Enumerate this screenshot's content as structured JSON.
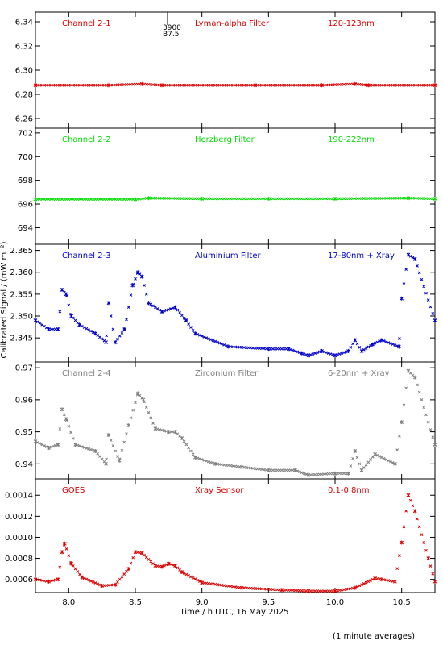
{
  "figure": {
    "ylabel": "Calibrated Signal / (mW m⁻²)",
    "xlabel": "Time / h UTC, 16 May 2025",
    "footnote": "(1 minute averages)",
    "marker": {
      "top": "3900",
      "bottom": "B7.5"
    }
  },
  "chart_data": [
    {
      "type": "scatter",
      "channel": "Channel 2-1",
      "filter": "Lyman-alpha Filter",
      "band": "120-123nm",
      "color": "#dd0000",
      "ylim": [
        6.252,
        6.348
      ],
      "yticks": [
        6.26,
        6.28,
        6.3,
        6.32,
        6.34
      ],
      "ytick_labels": [
        "6.26",
        "6.28",
        "6.30",
        "6.32",
        "6.34"
      ],
      "x": [
        7.75,
        8.3,
        8.55,
        8.7,
        9.4,
        9.9,
        10.15,
        10.25,
        10.75
      ],
      "y": [
        6.2875,
        6.2875,
        6.2885,
        6.2875,
        6.2875,
        6.2875,
        6.2885,
        6.2875,
        6.2875
      ]
    },
    {
      "type": "scatter",
      "channel": "Channel 2-2",
      "filter": "Herzberg Filter",
      "band": "190-222nm",
      "color": "#00dd00",
      "ylim": [
        692.6,
        702.4
      ],
      "yticks": [
        694,
        696,
        698,
        700,
        702
      ],
      "ytick_labels": [
        "694",
        "696",
        "698",
        "700",
        "702"
      ],
      "x": [
        7.75,
        8.5,
        8.6,
        9.0,
        9.5,
        10.0,
        10.55,
        10.75
      ],
      "y": [
        696.4,
        696.4,
        696.5,
        696.45,
        696.45,
        696.45,
        696.5,
        696.45
      ]
    },
    {
      "type": "scatter",
      "channel": "Channel 2-3",
      "filter": "Aluminium Filter",
      "band": "17-80nm + Xray",
      "color": "#0000cc",
      "ylim": [
        2.3395,
        2.3664
      ],
      "yticks": [
        2.345,
        2.35,
        2.355,
        2.36,
        2.365
      ],
      "ytick_labels": [
        "2.345",
        "2.350",
        "2.355",
        "2.360",
        "2.365"
      ],
      "x": [
        7.75,
        7.85,
        7.92,
        7.95,
        7.98,
        8.02,
        8.08,
        8.2,
        8.28,
        8.3,
        8.35,
        8.42,
        8.48,
        8.52,
        8.55,
        8.6,
        8.7,
        8.8,
        8.88,
        8.95,
        9.2,
        9.5,
        9.65,
        9.75,
        9.8,
        9.9,
        10.0,
        10.1,
        10.15,
        10.2,
        10.28,
        10.35,
        10.48,
        10.5,
        10.55,
        10.6,
        10.75
      ],
      "y": [
        2.349,
        2.347,
        2.347,
        2.356,
        2.355,
        2.35,
        2.348,
        2.346,
        2.344,
        2.353,
        2.344,
        2.347,
        2.357,
        2.36,
        2.359,
        2.353,
        2.351,
        2.352,
        2.349,
        2.346,
        2.343,
        2.3425,
        2.3425,
        2.3415,
        2.341,
        2.342,
        2.341,
        2.342,
        2.3445,
        2.342,
        2.3435,
        2.3445,
        2.343,
        2.354,
        2.364,
        2.363,
        2.349
      ]
    },
    {
      "type": "scatter",
      "channel": "Channel 2-4",
      "filter": "Zirconium Filter",
      "band": "6-20nm + Xray",
      "color": "#808080",
      "ylim": [
        0.9353,
        0.9718
      ],
      "yticks": [
        0.94,
        0.95,
        0.96,
        0.97
      ],
      "ytick_labels": [
        "0.94",
        "0.95",
        "0.96",
        "0.97"
      ],
      "x": [
        7.75,
        7.85,
        7.92,
        7.95,
        7.98,
        8.05,
        8.2,
        8.28,
        8.3,
        8.38,
        8.45,
        8.52,
        8.56,
        8.65,
        8.75,
        8.8,
        8.85,
        8.95,
        9.1,
        9.3,
        9.5,
        9.7,
        9.8,
        10.0,
        10.1,
        10.15,
        10.2,
        10.3,
        10.45,
        10.5,
        10.55,
        10.6,
        10.75
      ],
      "y": [
        0.947,
        0.945,
        0.946,
        0.957,
        0.954,
        0.946,
        0.944,
        0.94,
        0.949,
        0.941,
        0.952,
        0.962,
        0.96,
        0.951,
        0.95,
        0.95,
        0.948,
        0.942,
        0.94,
        0.939,
        0.938,
        0.938,
        0.9365,
        0.937,
        0.937,
        0.944,
        0.938,
        0.943,
        0.94,
        0.953,
        0.969,
        0.967,
        0.946
      ]
    },
    {
      "type": "scatter",
      "channel": "GOES",
      "filter": "Xray Sensor",
      "band": "0.1-0.8nm",
      "color": "#dd0000",
      "ylim": [
        0.000475,
        0.001555
      ],
      "yticks": [
        0.0006,
        0.0008,
        0.001,
        0.0012,
        0.0014
      ],
      "ytick_labels": [
        "0.0006",
        "0.0008",
        "0.0010",
        "0.0012",
        "0.0014"
      ],
      "x": [
        7.75,
        7.85,
        7.92,
        7.95,
        7.97,
        8.02,
        8.1,
        8.25,
        8.35,
        8.45,
        8.5,
        8.55,
        8.65,
        8.7,
        8.75,
        8.8,
        8.85,
        9.0,
        9.3,
        9.6,
        9.8,
        10.0,
        10.15,
        10.3,
        10.35,
        10.45,
        10.5,
        10.55,
        10.6,
        10.7,
        10.75
      ],
      "y": [
        0.0006,
        0.00058,
        0.0006,
        0.00086,
        0.00094,
        0.00075,
        0.00062,
        0.00054,
        0.00055,
        0.0007,
        0.00086,
        0.00085,
        0.00073,
        0.00072,
        0.00075,
        0.00073,
        0.00067,
        0.00057,
        0.00052,
        0.0005,
        0.00049,
        0.00049,
        0.00052,
        0.00061,
        0.0006,
        0.00058,
        0.00095,
        0.0014,
        0.00125,
        0.0008,
        0.00058
      ]
    }
  ],
  "x_axis": {
    "xlim": [
      7.75,
      10.75
    ],
    "ticks": [
      8.0,
      8.5,
      9.0,
      9.5,
      10.0,
      10.5
    ],
    "tick_labels": [
      "8.0",
      "8.5",
      "9.0",
      "9.5",
      "10.0",
      "10.5"
    ],
    "marker_time": 8.75
  }
}
